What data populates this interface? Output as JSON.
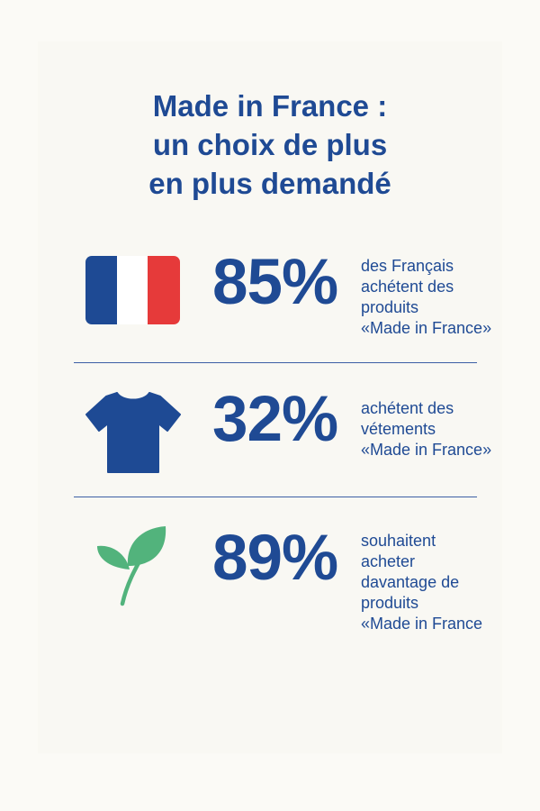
{
  "title": {
    "lines": [
      "Made in France :",
      "un choix de plus",
      "en plus demandé"
    ]
  },
  "stats": [
    {
      "value": "85%",
      "icon": "french-flag-icon",
      "description_lines": [
        "des Français",
        "achétent des",
        "produits",
        "«Made in France»"
      ]
    },
    {
      "value": "32%",
      "icon": "tshirt-icon",
      "description_lines": [
        "achétent des",
        "vétements",
        "«Made in France»"
      ]
    },
    {
      "value": "89%",
      "icon": "leaf-icon",
      "description_lines": [
        "souhaitent",
        "acheter",
        "davantage de",
        "produits",
        "«Made in France"
      ]
    }
  ],
  "colors": {
    "primary_blue": "#1f4a94",
    "flag_blue": "#1e4a94",
    "flag_white": "#ffffff",
    "flag_red": "#e63a3a",
    "leaf_green": "#52b37c",
    "background": "#fbfaf6"
  }
}
